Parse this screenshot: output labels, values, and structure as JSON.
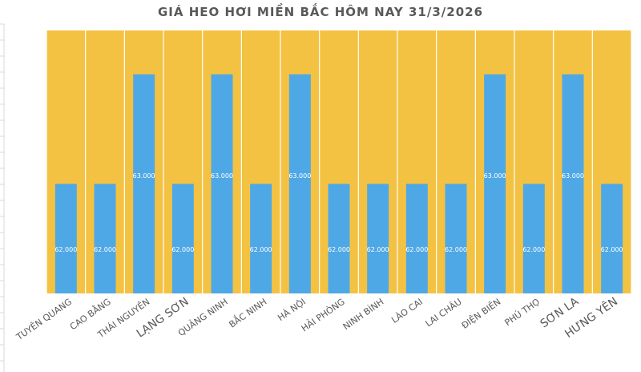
{
  "chart_data": {
    "type": "bar",
    "title": "GIÁ HEO HƠI MIỀN BẮC HÔM NAY 31/3/2026",
    "categories": [
      "TUYÊN QUANG",
      "CAO BẰNG",
      "THÁI NGUYÊN",
      "LẠNG SƠN",
      "QUẢNG NINH",
      "BẮC NINH",
      "HÀ NỘI",
      "HẢI PHÒNG",
      "NINH BÌNH",
      "LÀO CAI",
      "LAI CHÂU",
      "ĐIỆN BIÊN",
      "PHÚ THỌ",
      "SƠN LA",
      "HƯNG YÊN"
    ],
    "values": [
      62000,
      62000,
      63000,
      62000,
      63000,
      62000,
      63000,
      62000,
      62000,
      62000,
      62000,
      63000,
      62000,
      63000,
      62000
    ],
    "data_labels": [
      "62.000",
      "62.000",
      "63.000",
      "62.000",
      "63.000",
      "62.000",
      "63.000",
      "62.000",
      "62.000",
      "62.000",
      "62.000",
      "63.000",
      "62.000",
      "63.000",
      "62.000"
    ],
    "ylim": [
      61000,
      63400
    ],
    "grid": false,
    "legend": "none",
    "colors": {
      "bar": "#4EA8E6",
      "plot_background": "#F4C242",
      "separator": "#FFFFFF",
      "data_label": "#FFFFFF",
      "tick_label": "#595959",
      "title": "#595959"
    }
  }
}
